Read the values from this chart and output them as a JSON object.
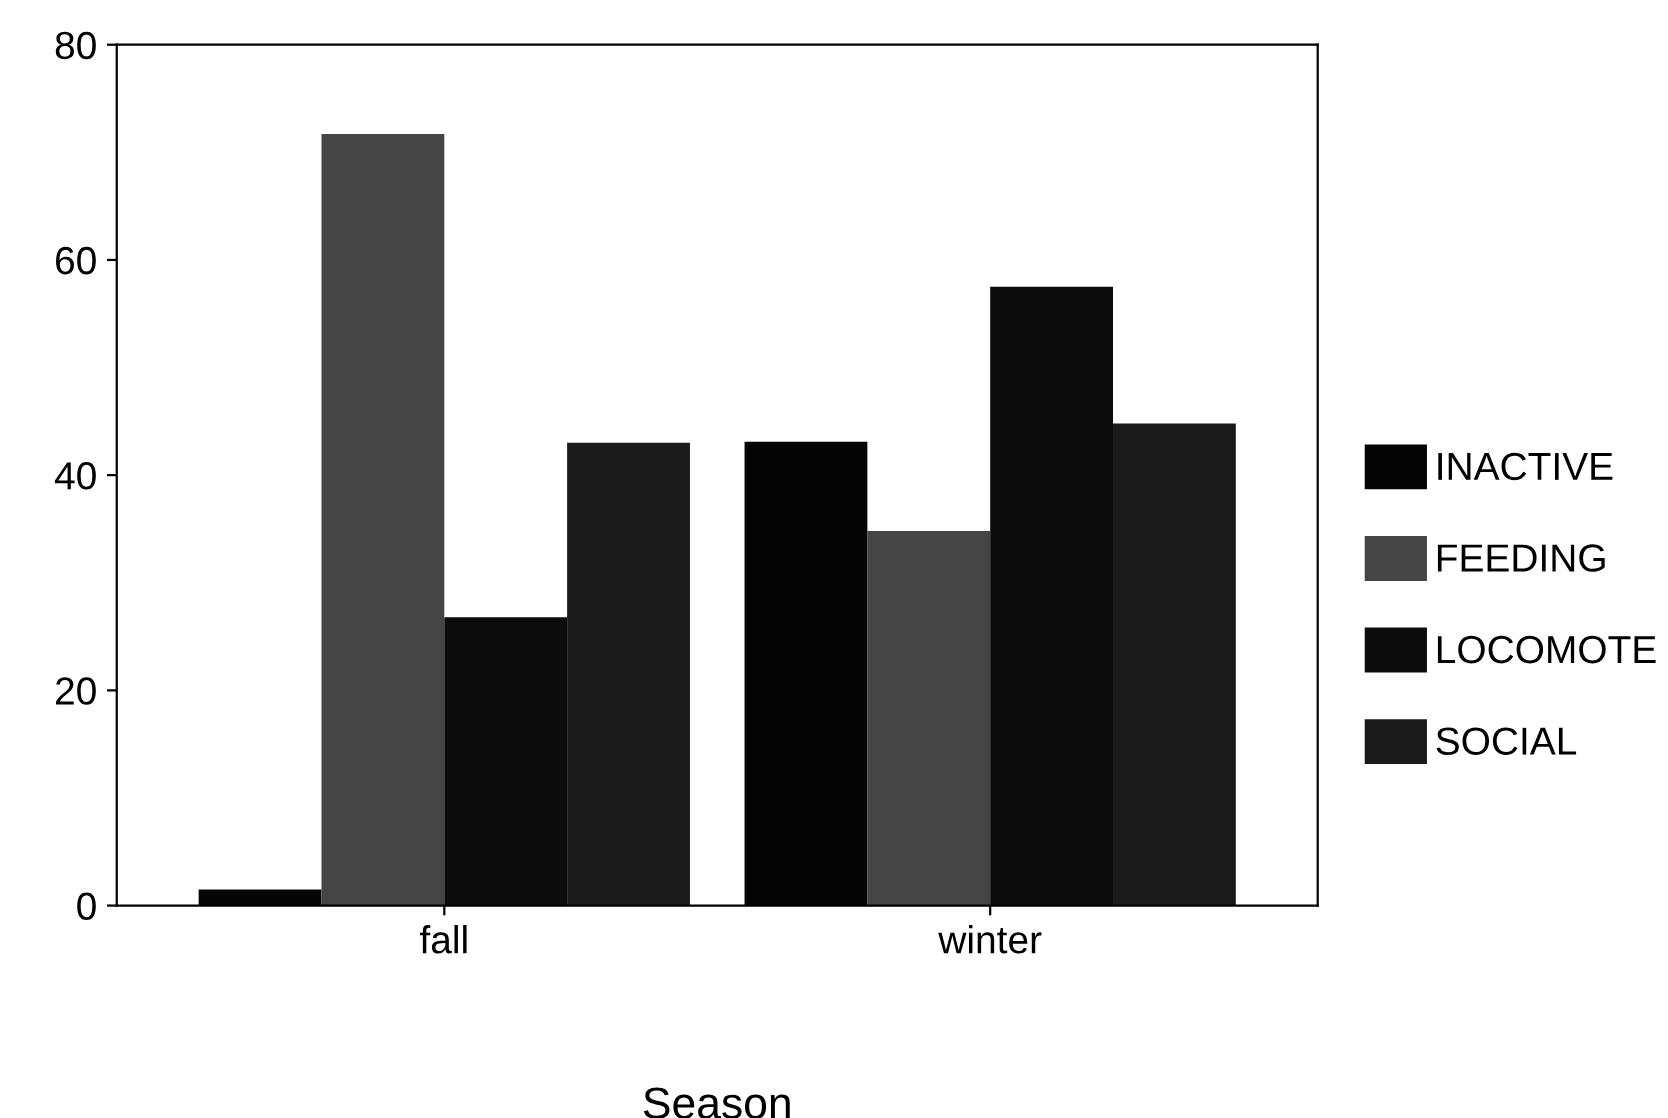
{
  "chart_data": {
    "type": "bar",
    "xlabel": "Season",
    "categories": [
      "fall",
      "winter"
    ],
    "series": [
      {
        "name": "INACTIVE",
        "color": "#050505",
        "values": [
          1.5,
          43.1
        ]
      },
      {
        "name": "FEEDING",
        "color": "#454545",
        "values": [
          71.7,
          34.8
        ]
      },
      {
        "name": "LOCOMOTE",
        "color": "#0c0c0c",
        "values": [
          26.8,
          57.5
        ]
      },
      {
        "name": "SOCIAL",
        "color": "#1a1a1a",
        "values": [
          43.0,
          44.8
        ]
      }
    ],
    "ylim": [
      0,
      80
    ],
    "yticks": [
      0,
      20,
      40,
      60,
      80
    ],
    "grid": false,
    "legend": "right"
  }
}
